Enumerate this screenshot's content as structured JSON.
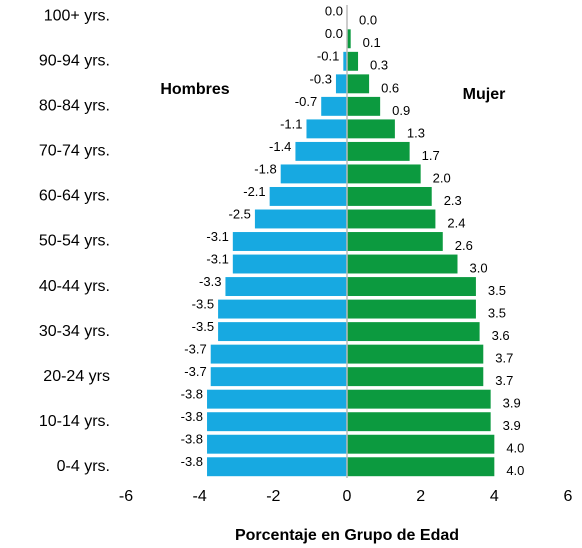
{
  "chart_data": {
    "type": "pyramid",
    "categories": [
      "0-4 yrs.",
      null,
      "10-14 yrs.",
      null,
      "20-24 yrs",
      null,
      "30-34 yrs.",
      null,
      "40-44 yrs.",
      null,
      "50-54 yrs.",
      null,
      "60-64 yrs.",
      null,
      "70-74 yrs.",
      null,
      "80-84 yrs.",
      null,
      "90-94 yrs.",
      null,
      "100+ yrs."
    ],
    "series": [
      {
        "name": "Hombres",
        "color": "#17a9e1",
        "values": [
          -3.8,
          -3.8,
          -3.8,
          -3.8,
          -3.7,
          -3.7,
          -3.5,
          -3.5,
          -3.3,
          -3.1,
          -3.1,
          -2.5,
          -2.1,
          -1.8,
          -1.4,
          -1.1,
          -0.7,
          -0.3,
          -0.1,
          0,
          0
        ],
        "value_labels": [
          "-3.8",
          "-3.8",
          "-3.8",
          "-3.8",
          "-3.7",
          "-3.7",
          "-3.5",
          "-3.5",
          "-3.3",
          "-3.1",
          "-3.1",
          "-2.5",
          "-2.1",
          "-1.8",
          "-1.4",
          "-1.1",
          "-0.7",
          "-0.3",
          "-0.1",
          "0.0",
          "0.0"
        ]
      },
      {
        "name": "Mujer",
        "color": "#0c9a3f",
        "values": [
          4.0,
          4.0,
          3.9,
          3.9,
          3.7,
          3.7,
          3.6,
          3.5,
          3.5,
          3.0,
          2.6,
          2.4,
          2.3,
          2.0,
          1.7,
          1.3,
          0.9,
          0.6,
          0.3,
          0.1,
          0
        ],
        "value_labels": [
          "4.0",
          "4.0",
          "3.9",
          "3.9",
          "3.7",
          "3.7",
          "3.6",
          "3.5",
          "3.5",
          "3.0",
          "2.6",
          "2.4",
          "2.3",
          "2.0",
          "1.7",
          "1.3",
          "0.9",
          "0.6",
          "0.3",
          "0.1",
          "0.0"
        ]
      }
    ],
    "xlabel": "Porcentaje en Grupo de Edad",
    "xlim": [
      -6,
      6
    ],
    "xticks": [
      -6,
      -4,
      -2,
      0,
      2,
      4,
      6
    ]
  }
}
